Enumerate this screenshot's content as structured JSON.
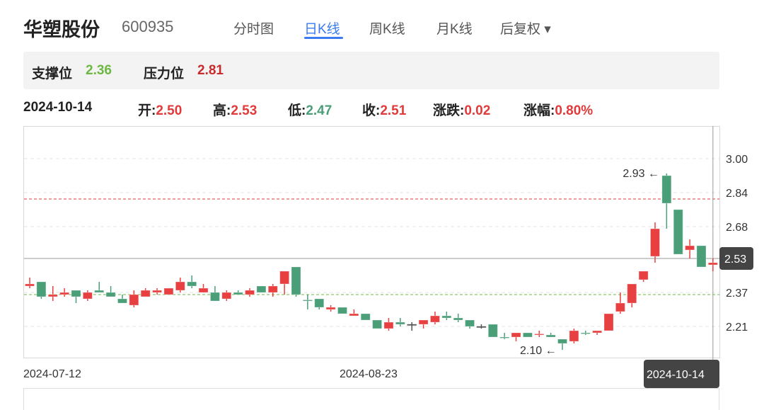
{
  "header": {
    "title": "华塑股份",
    "code": "600935",
    "tabs": [
      {
        "label": "分时图",
        "active": false
      },
      {
        "label": "日K线",
        "active": true
      },
      {
        "label": "周K线",
        "active": false
      },
      {
        "label": "月K线",
        "active": false
      },
      {
        "label": "后复权 ▾",
        "active": false
      }
    ]
  },
  "levels": {
    "support_label": "支撑位",
    "support": "2.36",
    "resistance_label": "压力位",
    "resistance": "2.81"
  },
  "quote": {
    "date": "2024-10-14",
    "open_label": "开:",
    "open": "2.50",
    "high_label": "高:",
    "high": "2.53",
    "low_label": "低:",
    "low": "2.47",
    "close_label": "收:",
    "close": "2.51",
    "change_label": "涨跌:",
    "change": "0.02",
    "pct_label": "涨幅:",
    "pct": "0.80%"
  },
  "colors": {
    "up": "#e84040",
    "down": "#4a9e78",
    "flat": "#555555",
    "support": "#6cb843",
    "resistance": "#e03a3a",
    "accent": "#3a7bf0"
  },
  "chart_data": {
    "type": "candlestick",
    "y_ticks": [
      "3.00",
      "2.84",
      "2.68",
      "2.53",
      "2.37",
      "2.21"
    ],
    "x_ticks": [
      "2024-07-12",
      "2024-08-23"
    ],
    "crosshair": {
      "date": "2024-10-14",
      "price": "2.53"
    },
    "support": 2.36,
    "resistance": 2.81,
    "max_annotation": "2.93",
    "min_annotation": "2.10",
    "ohlc": [
      [
        2.4,
        2.44,
        2.39,
        2.41
      ],
      [
        2.42,
        2.42,
        2.34,
        2.35
      ],
      [
        2.35,
        2.4,
        2.33,
        2.36
      ],
      [
        2.36,
        2.39,
        2.35,
        2.37
      ],
      [
        2.38,
        2.38,
        2.32,
        2.35
      ],
      [
        2.34,
        2.38,
        2.33,
        2.37
      ],
      [
        2.38,
        2.42,
        2.37,
        2.37
      ],
      [
        2.37,
        2.4,
        2.35,
        2.35
      ],
      [
        2.34,
        2.36,
        2.32,
        2.32
      ],
      [
        2.31,
        2.38,
        2.3,
        2.36
      ],
      [
        2.35,
        2.39,
        2.35,
        2.38
      ],
      [
        2.37,
        2.39,
        2.36,
        2.38
      ],
      [
        2.36,
        2.39,
        2.36,
        2.39
      ],
      [
        2.38,
        2.44,
        2.37,
        2.42
      ],
      [
        2.42,
        2.45,
        2.39,
        2.4
      ],
      [
        2.37,
        2.41,
        2.37,
        2.39
      ],
      [
        2.37,
        2.4,
        2.33,
        2.33
      ],
      [
        2.34,
        2.38,
        2.33,
        2.37
      ],
      [
        2.37,
        2.38,
        2.36,
        2.36
      ],
      [
        2.36,
        2.39,
        2.35,
        2.38
      ],
      [
        2.4,
        2.4,
        2.37,
        2.37
      ],
      [
        2.37,
        2.41,
        2.35,
        2.4
      ],
      [
        2.41,
        2.47,
        2.36,
        2.47
      ],
      [
        2.49,
        2.49,
        2.35,
        2.36
      ],
      [
        2.335,
        2.36,
        2.29,
        2.33
      ],
      [
        2.34,
        2.34,
        2.29,
        2.3
      ],
      [
        2.29,
        2.31,
        2.28,
        2.3
      ],
      [
        2.3,
        2.3,
        2.27,
        2.27
      ],
      [
        2.26,
        2.29,
        2.26,
        2.27
      ],
      [
        2.27,
        2.27,
        2.24,
        2.24
      ],
      [
        2.24,
        2.24,
        2.2,
        2.2
      ],
      [
        2.2,
        2.25,
        2.19,
        2.23
      ],
      [
        2.23,
        2.25,
        2.21,
        2.22
      ],
      [
        2.22,
        2.23,
        2.19,
        2.22
      ],
      [
        2.22,
        2.24,
        2.2,
        2.24
      ],
      [
        2.23,
        2.28,
        2.22,
        2.26
      ],
      [
        2.26,
        2.28,
        2.24,
        2.25
      ],
      [
        2.25,
        2.27,
        2.23,
        2.24
      ],
      [
        2.24,
        2.24,
        2.2,
        2.21
      ],
      [
        2.21,
        2.22,
        2.2,
        2.21
      ],
      [
        2.22,
        2.22,
        2.16,
        2.16
      ],
      [
        2.16,
        2.18,
        2.15,
        2.155
      ],
      [
        2.16,
        2.18,
        2.14,
        2.18
      ],
      [
        2.18,
        2.18,
        2.16,
        2.16
      ],
      [
        2.17,
        2.19,
        2.16,
        2.175
      ],
      [
        2.17,
        2.18,
        2.16,
        2.16
      ],
      [
        2.15,
        2.15,
        2.1,
        2.13
      ],
      [
        2.14,
        2.2,
        2.13,
        2.19
      ],
      [
        2.18,
        2.19,
        2.17,
        2.178
      ],
      [
        2.18,
        2.19,
        2.17,
        2.19
      ],
      [
        2.19,
        2.27,
        2.19,
        2.27
      ],
      [
        2.28,
        2.37,
        2.27,
        2.32
      ],
      [
        2.32,
        2.41,
        2.3,
        2.41
      ],
      [
        2.43,
        2.47,
        2.42,
        2.47
      ],
      [
        2.54,
        2.7,
        2.51,
        2.67
      ],
      [
        2.92,
        2.93,
        2.67,
        2.79
      ],
      [
        2.76,
        2.76,
        2.55,
        2.55
      ],
      [
        2.57,
        2.62,
        2.53,
        2.59
      ],
      [
        2.59,
        2.59,
        2.49,
        2.49
      ],
      [
        2.5,
        2.53,
        2.47,
        2.51
      ]
    ]
  }
}
